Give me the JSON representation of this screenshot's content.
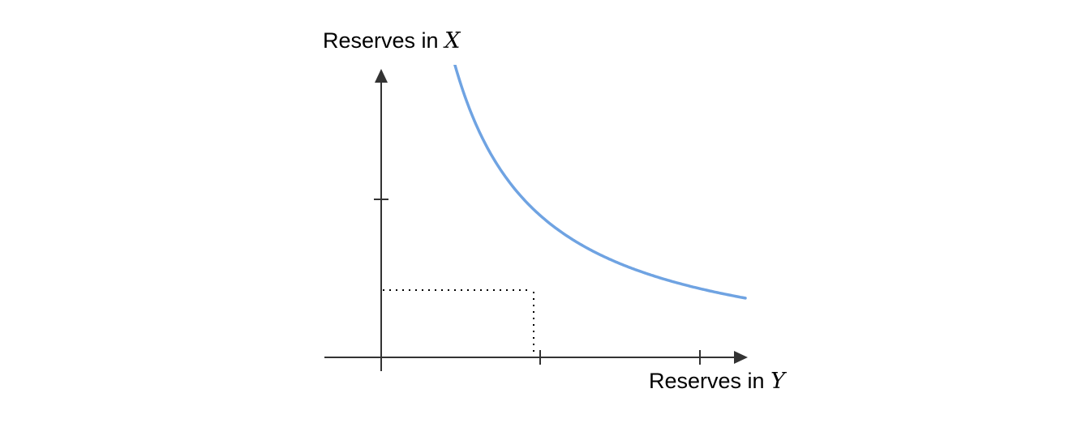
{
  "diagram": {
    "y_axis_label": {
      "text": "Reserves in ",
      "variable": "X"
    },
    "x_axis_label": {
      "text": "Reserves in ",
      "variable": "Y"
    },
    "colors": {
      "curve": "#6fa3e2",
      "axis": "#333333",
      "guide": "#000000"
    }
  }
}
